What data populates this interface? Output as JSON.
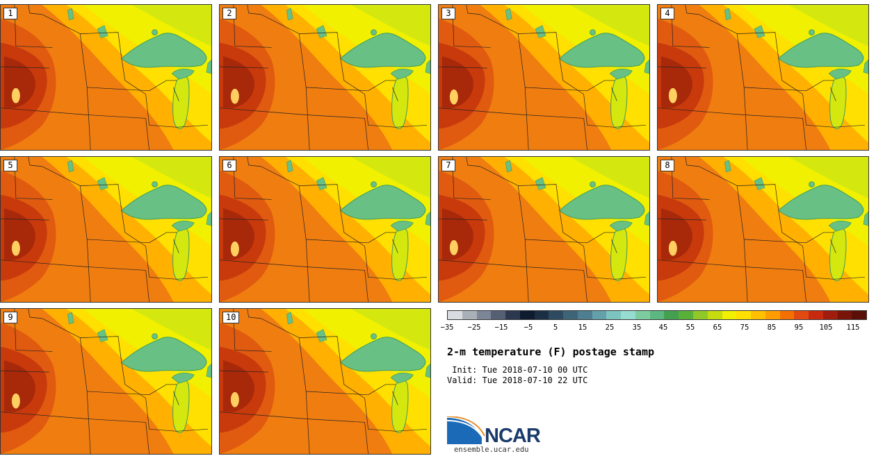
{
  "panels": [
    {
      "label": "1"
    },
    {
      "label": "2"
    },
    {
      "label": "3"
    },
    {
      "label": "4"
    },
    {
      "label": "5"
    },
    {
      "label": "6"
    },
    {
      "label": "7"
    },
    {
      "label": "8"
    },
    {
      "label": "9"
    },
    {
      "label": "10"
    }
  ],
  "colorbar": {
    "ticks": [
      "−35",
      "−25",
      "−15",
      "−5",
      "5",
      "15",
      "25",
      "35",
      "45",
      "55",
      "65",
      "75",
      "85",
      "95",
      "105",
      "115"
    ],
    "colors": [
      "#d8dce0",
      "#aab0b8",
      "#7c8696",
      "#566074",
      "#2c3850",
      "#0e1a2e",
      "#1c2e44",
      "#2e4a60",
      "#3e6478",
      "#4e7e90",
      "#64a0aa",
      "#7cc4c0",
      "#96dcd0",
      "#7ccca0",
      "#5cb880",
      "#44a050",
      "#58b038",
      "#90c828",
      "#c4dc10",
      "#f0f000",
      "#ffe000",
      "#ffc000",
      "#ff9c00",
      "#f47000",
      "#e04a10",
      "#c82a10",
      "#a01c0c",
      "#781408",
      "#5a1006"
    ]
  },
  "title": "2-m temperature (F) postage stamp",
  "init_line": " Init: Tue 2018-07-10 00 UTC",
  "valid_line": "Valid: Tue 2018-07-10 22 UTC",
  "logo": {
    "text": "NCAR",
    "url": "ensemble.ucar.edu",
    "accent": "#1a3a6b"
  },
  "map_colors": {
    "hot": "#f07d10",
    "hotter": "#e05a10",
    "hottest": "#c83a0c",
    "extreme": "#a8280a",
    "warm": "#ffb000",
    "mild": "#ffe000",
    "cool": "#f0f000",
    "cooler": "#d4e810",
    "lake": "#68c084",
    "lake_edge": "#3e9a60",
    "hotspot": "#ffd060"
  }
}
